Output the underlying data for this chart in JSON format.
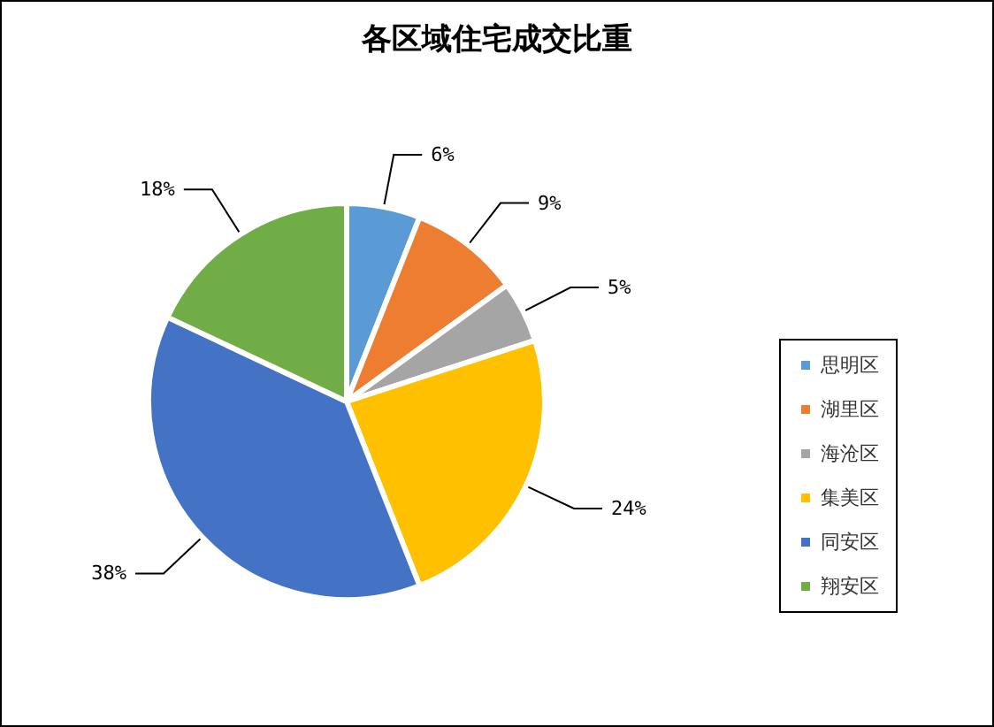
{
  "chart_data": {
    "type": "pie",
    "title": "各区域住宅成交比重",
    "categories": [
      "思明区",
      "湖里区",
      "海沧区",
      "集美区",
      "同安区",
      "翔安区"
    ],
    "values": [
      6,
      9,
      5,
      24,
      38,
      18
    ],
    "value_labels": [
      "6%",
      "9%",
      "5%",
      "24%",
      "38%",
      "18%"
    ],
    "colors": [
      "#5b9bd5",
      "#ed7d31",
      "#a5a5a5",
      "#ffc000",
      "#4472c4",
      "#70ad47"
    ],
    "legend": "right"
  }
}
